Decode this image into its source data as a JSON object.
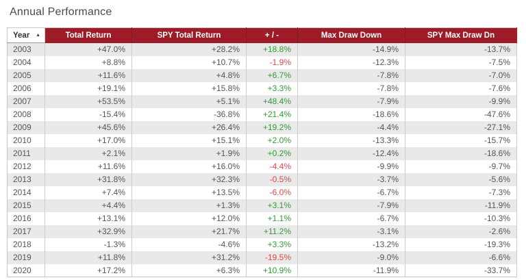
{
  "title": "Annual Performance",
  "colors": {
    "header_background": "#9e1c28",
    "positive_green": "#2f9d32",
    "negative_red": "#e04646",
    "row_alternate_gray": "#e9e9e9"
  },
  "sort": {
    "sorted_column": "Year",
    "direction": "ascending",
    "sort_asc_icon": "▲"
  },
  "chart_data": {
    "type": "table",
    "title": "Annual Performance",
    "columns": [
      "Year",
      "Total Return",
      "SPY Total Return",
      "+ / -",
      "Max Draw Down",
      "SPY Max Draw Dn"
    ],
    "rows": [
      [
        "2003",
        "+47.0%",
        "+28.2%",
        "+18.8%",
        "-14.9%",
        "-13.7%"
      ],
      [
        "2004",
        "+8.8%",
        "+10.7%",
        "-1.9%",
        "-12.3%",
        "-7.5%"
      ],
      [
        "2005",
        "+11.6%",
        "+4.8%",
        "+6.7%",
        "-7.8%",
        "-7.0%"
      ],
      [
        "2006",
        "+19.1%",
        "+15.8%",
        "+3.3%",
        "-7.8%",
        "-7.6%"
      ],
      [
        "2007",
        "+53.5%",
        "+5.1%",
        "+48.4%",
        "-7.9%",
        "-9.9%"
      ],
      [
        "2008",
        "-15.4%",
        "-36.8%",
        "+21.4%",
        "-18.6%",
        "-47.6%"
      ],
      [
        "2009",
        "+45.6%",
        "+26.4%",
        "+19.2%",
        "-4.4%",
        "-27.1%"
      ],
      [
        "2010",
        "+17.0%",
        "+15.1%",
        "+2.0%",
        "-13.3%",
        "-15.7%"
      ],
      [
        "2011",
        "+2.1%",
        "+1.9%",
        "+0.2%",
        "-12.4%",
        "-18.6%"
      ],
      [
        "2012",
        "+11.6%",
        "+16.0%",
        "-4.4%",
        "-9.9%",
        "-9.7%"
      ],
      [
        "2013",
        "+31.8%",
        "+32.3%",
        "-0.5%",
        "-3.7%",
        "-5.6%"
      ],
      [
        "2014",
        "+7.4%",
        "+13.5%",
        "-6.0%",
        "-6.7%",
        "-7.3%"
      ],
      [
        "2015",
        "+4.4%",
        "+1.3%",
        "+3.1%",
        "-7.9%",
        "-11.9%"
      ],
      [
        "2016",
        "+13.1%",
        "+12.0%",
        "+1.1%",
        "-6.7%",
        "-10.3%"
      ],
      [
        "2017",
        "+32.9%",
        "+21.7%",
        "+11.2%",
        "-3.1%",
        "-2.6%"
      ],
      [
        "2018",
        "-1.3%",
        "-4.6%",
        "+3.3%",
        "-13.2%",
        "-19.3%"
      ],
      [
        "2019",
        "+11.8%",
        "+31.2%",
        "-19.5%",
        "-9.0%",
        "-6.6%"
      ],
      [
        "2020",
        "+17.2%",
        "+6.3%",
        "+10.9%",
        "-11.9%",
        "-33.7%"
      ]
    ],
    "value_coloring": "plus-minus column: green when positive, red when negative",
    "layout": {
      "striped_rows": "odd rows gray starting with first data row",
      "header_style": "dark red with white bold text"
    }
  }
}
